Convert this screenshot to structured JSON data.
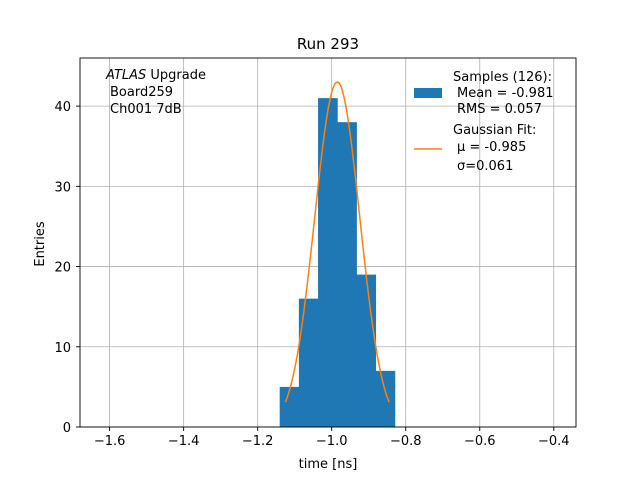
{
  "chart_data": {
    "type": "bar",
    "title": "Run 293",
    "xlabel": "time [ns]",
    "ylabel": "Entries",
    "xlim": [
      -1.68,
      -0.34
    ],
    "ylim": [
      0,
      46
    ],
    "xticks": [
      -1.6,
      -1.4,
      -1.2,
      -1.0,
      -0.8,
      -0.6,
      -0.4
    ],
    "xtick_labels": [
      "−1.6",
      "−1.4",
      "−1.2",
      "−1.0",
      "−0.8",
      "−0.6",
      "−0.4"
    ],
    "yticks": [
      0,
      10,
      20,
      30,
      40
    ],
    "ytick_labels": [
      "0",
      "10",
      "20",
      "30",
      "40"
    ],
    "grid": true,
    "annotation": {
      "line1_italic": "ATLAS",
      "line1_rest": " Upgrade",
      "line2": "Board259",
      "line3": "Ch001 7dB"
    },
    "legend": {
      "placement": "top-right",
      "hist_lines": [
        "Samples (126):",
        "Mean = -0.981",
        "RMS = 0.057"
      ],
      "fit_lines": [
        "Gaussian Fit:",
        "μ = -0.985",
        "σ=0.061"
      ]
    },
    "histogram": {
      "color": "#1f77b4",
      "bin_edges": [
        -1.1405,
        -1.0887,
        -1.0369,
        -0.9851,
        -0.9333,
        -0.8815,
        -0.8297
      ],
      "counts": [
        5,
        16,
        41,
        38,
        19,
        7
      ]
    },
    "fit": {
      "color": "#ff7f0e",
      "mu": -0.985,
      "sigma": 0.061,
      "amplitude": 43.0,
      "x_range": [
        -1.125,
        -0.845
      ]
    }
  }
}
